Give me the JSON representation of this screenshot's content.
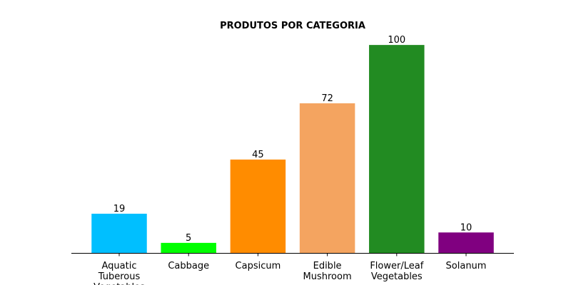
{
  "chart_data": {
    "type": "bar",
    "title": "PRODUTOS POR CATEGORIA",
    "xlabel": "",
    "ylabel": "",
    "categories": [
      "Aquatic Tuberous Vegetables",
      "Cabbage",
      "Capsicum",
      "Edible Mushroom",
      "Flower/Leaf Vegetables",
      "Solanum"
    ],
    "category_lines": [
      [
        "Aquatic",
        "Tuberous",
        "Vegetables"
      ],
      [
        "Cabbage"
      ],
      [
        "Capsicum"
      ],
      [
        "Edible",
        "Mushroom"
      ],
      [
        "Flower/Leaf",
        "Vegetables"
      ],
      [
        "Solanum"
      ]
    ],
    "values": [
      19,
      5,
      45,
      72,
      100,
      10
    ],
    "value_labels": [
      "19",
      "5",
      "45",
      "72",
      "100",
      "10"
    ],
    "colors": [
      "#00bfff",
      "#00ff00",
      "#ff8c00",
      "#f4a460",
      "#228b22",
      "#800080"
    ],
    "ylim": [
      0,
      105
    ],
    "grid": false,
    "legend": "none",
    "y_axis_visible": false
  }
}
